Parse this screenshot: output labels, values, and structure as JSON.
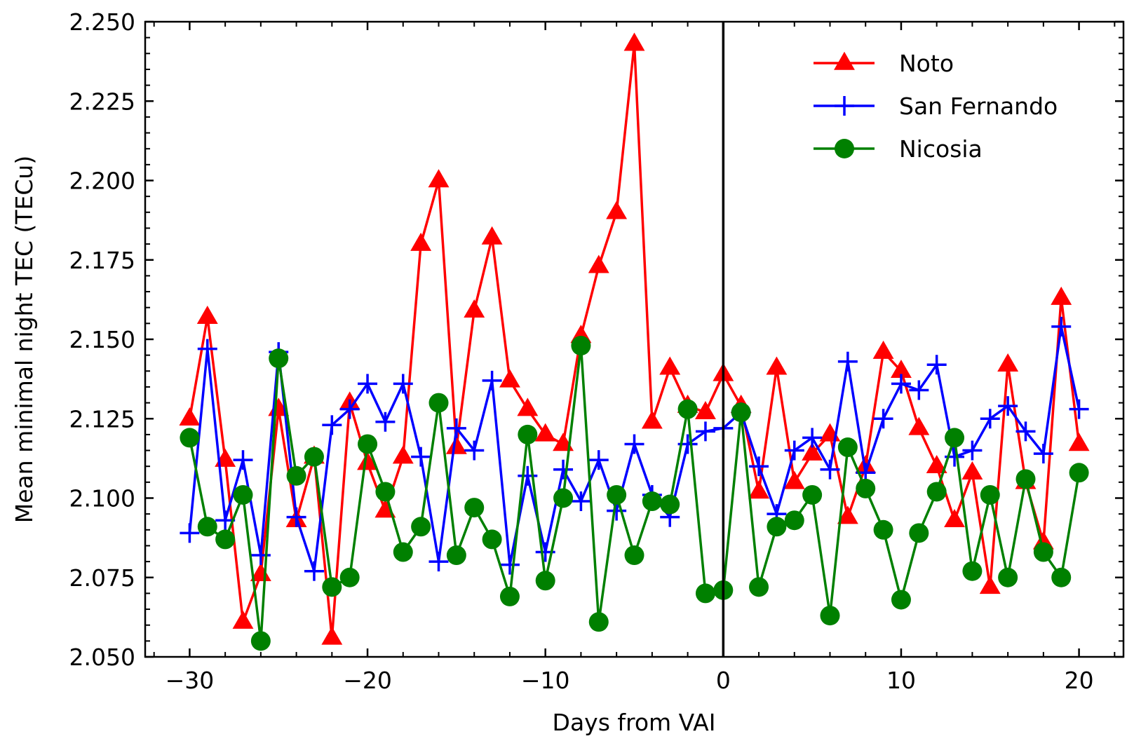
{
  "chart_data": {
    "type": "line",
    "title": "",
    "xlabel": "Days from VAI",
    "ylabel": "Mean minimal night TEC (TECu)",
    "xlim": [
      -32.5,
      22.5
    ],
    "ylim": [
      2.05,
      2.25
    ],
    "xticks": [
      -30,
      -20,
      -10,
      0,
      10,
      20
    ],
    "xtick_labels": [
      "−30",
      "−20",
      "−10",
      "0",
      "10",
      "20"
    ],
    "xminor_step": 2,
    "yticks": [
      2.05,
      2.075,
      2.1,
      2.125,
      2.15,
      2.175,
      2.2,
      2.225,
      2.25
    ],
    "ytick_labels": [
      "2.050",
      "2.075",
      "2.100",
      "2.125",
      "2.150",
      "2.175",
      "2.200",
      "2.225",
      "2.250"
    ],
    "yminor_step": 0.005,
    "grid": false,
    "legend_position": "top-right",
    "vertical_line": {
      "x": 0,
      "color": "#000000"
    },
    "x": [
      -30,
      -29,
      -28,
      -27,
      -26,
      -25,
      -24,
      -23,
      -22,
      -21,
      -20,
      -19,
      -18,
      -17,
      -16,
      -15,
      -14,
      -13,
      -12,
      -11,
      -10,
      -9,
      -8,
      -7,
      -6,
      -5,
      -4,
      -3,
      -2,
      -1,
      0,
      1,
      2,
      3,
      4,
      5,
      6,
      7,
      8,
      9,
      10,
      11,
      12,
      13,
      14,
      15,
      16,
      17,
      18,
      19,
      20
    ],
    "series": [
      {
        "name": "Noto",
        "color": "#ff0000",
        "marker": "triangle-up",
        "values": [
          2.125,
          2.157,
          2.112,
          2.061,
          2.076,
          2.128,
          2.093,
          2.113,
          2.056,
          2.13,
          2.111,
          2.096,
          2.113,
          2.18,
          2.2,
          2.116,
          2.159,
          2.182,
          2.137,
          2.128,
          2.12,
          2.117,
          2.151,
          2.173,
          2.19,
          2.243,
          2.124,
          2.141,
          2.129,
          2.127,
          2.139,
          2.129,
          2.102,
          2.141,
          2.105,
          2.114,
          2.12,
          2.094,
          2.11,
          2.146,
          2.14,
          2.122,
          2.11,
          2.093,
          2.108,
          2.072,
          2.142,
          2.105,
          2.086,
          2.163,
          2.117
        ]
      },
      {
        "name": "San Fernando",
        "color": "#0000ff",
        "marker": "plus",
        "values": [
          2.089,
          2.147,
          2.093,
          2.112,
          2.082,
          2.146,
          2.094,
          2.077,
          2.123,
          2.128,
          2.136,
          2.124,
          2.136,
          2.113,
          2.08,
          2.122,
          2.115,
          2.137,
          2.079,
          2.107,
          2.083,
          2.109,
          2.099,
          2.112,
          2.096,
          2.117,
          2.101,
          2.094,
          2.117,
          2.121,
          2.122,
          2.127,
          2.11,
          2.095,
          2.115,
          2.119,
          2.109,
          2.143,
          2.108,
          2.125,
          2.136,
          2.134,
          2.142,
          2.113,
          2.115,
          2.125,
          2.129,
          2.121,
          2.114,
          2.154,
          2.128
        ]
      },
      {
        "name": "Nicosia",
        "color": "#008000",
        "marker": "circle",
        "values": [
          2.119,
          2.091,
          2.087,
          2.101,
          2.055,
          2.144,
          2.107,
          2.113,
          2.072,
          2.075,
          2.117,
          2.102,
          2.083,
          2.091,
          2.13,
          2.082,
          2.097,
          2.087,
          2.069,
          2.12,
          2.074,
          2.1,
          2.148,
          2.061,
          2.101,
          2.082,
          2.099,
          2.098,
          2.128,
          2.07,
          2.071,
          2.127,
          2.072,
          2.091,
          2.093,
          2.101,
          2.063,
          2.116,
          2.103,
          2.09,
          2.068,
          2.089,
          2.102,
          2.119,
          2.077,
          2.101,
          2.075,
          2.106,
          2.083,
          2.075,
          2.108
        ]
      }
    ]
  }
}
